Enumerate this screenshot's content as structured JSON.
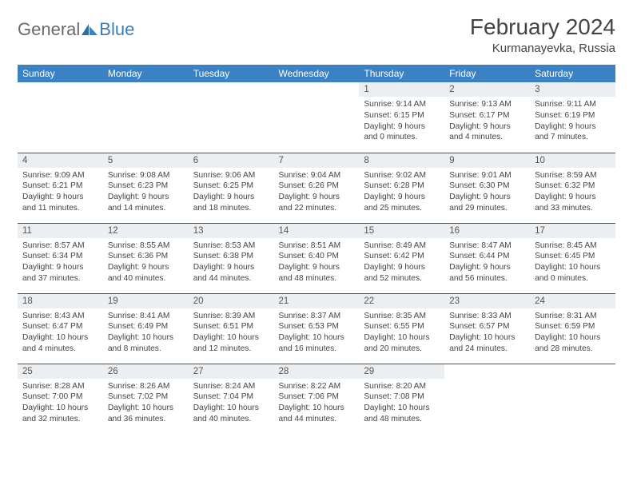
{
  "logo": {
    "gray": "General",
    "blue": "Blue"
  },
  "title": "February 2024",
  "location": "Kurmanayevka, Russia",
  "header_bg": "#3b82c4",
  "daynum_bg": "#eceff1",
  "border_color": "#2b5b8a",
  "weekdays": [
    "Sunday",
    "Monday",
    "Tuesday",
    "Wednesday",
    "Thursday",
    "Friday",
    "Saturday"
  ],
  "weeks": [
    [
      null,
      null,
      null,
      null,
      {
        "n": "1",
        "sr": "9:14 AM",
        "ss": "6:15 PM",
        "dl": "9 hours and 0 minutes."
      },
      {
        "n": "2",
        "sr": "9:13 AM",
        "ss": "6:17 PM",
        "dl": "9 hours and 4 minutes."
      },
      {
        "n": "3",
        "sr": "9:11 AM",
        "ss": "6:19 PM",
        "dl": "9 hours and 7 minutes."
      }
    ],
    [
      {
        "n": "4",
        "sr": "9:09 AM",
        "ss": "6:21 PM",
        "dl": "9 hours and 11 minutes."
      },
      {
        "n": "5",
        "sr": "9:08 AM",
        "ss": "6:23 PM",
        "dl": "9 hours and 14 minutes."
      },
      {
        "n": "6",
        "sr": "9:06 AM",
        "ss": "6:25 PM",
        "dl": "9 hours and 18 minutes."
      },
      {
        "n": "7",
        "sr": "9:04 AM",
        "ss": "6:26 PM",
        "dl": "9 hours and 22 minutes."
      },
      {
        "n": "8",
        "sr": "9:02 AM",
        "ss": "6:28 PM",
        "dl": "9 hours and 25 minutes."
      },
      {
        "n": "9",
        "sr": "9:01 AM",
        "ss": "6:30 PM",
        "dl": "9 hours and 29 minutes."
      },
      {
        "n": "10",
        "sr": "8:59 AM",
        "ss": "6:32 PM",
        "dl": "9 hours and 33 minutes."
      }
    ],
    [
      {
        "n": "11",
        "sr": "8:57 AM",
        "ss": "6:34 PM",
        "dl": "9 hours and 37 minutes."
      },
      {
        "n": "12",
        "sr": "8:55 AM",
        "ss": "6:36 PM",
        "dl": "9 hours and 40 minutes."
      },
      {
        "n": "13",
        "sr": "8:53 AM",
        "ss": "6:38 PM",
        "dl": "9 hours and 44 minutes."
      },
      {
        "n": "14",
        "sr": "8:51 AM",
        "ss": "6:40 PM",
        "dl": "9 hours and 48 minutes."
      },
      {
        "n": "15",
        "sr": "8:49 AM",
        "ss": "6:42 PM",
        "dl": "9 hours and 52 minutes."
      },
      {
        "n": "16",
        "sr": "8:47 AM",
        "ss": "6:44 PM",
        "dl": "9 hours and 56 minutes."
      },
      {
        "n": "17",
        "sr": "8:45 AM",
        "ss": "6:45 PM",
        "dl": "10 hours and 0 minutes."
      }
    ],
    [
      {
        "n": "18",
        "sr": "8:43 AM",
        "ss": "6:47 PM",
        "dl": "10 hours and 4 minutes."
      },
      {
        "n": "19",
        "sr": "8:41 AM",
        "ss": "6:49 PM",
        "dl": "10 hours and 8 minutes."
      },
      {
        "n": "20",
        "sr": "8:39 AM",
        "ss": "6:51 PM",
        "dl": "10 hours and 12 minutes."
      },
      {
        "n": "21",
        "sr": "8:37 AM",
        "ss": "6:53 PM",
        "dl": "10 hours and 16 minutes."
      },
      {
        "n": "22",
        "sr": "8:35 AM",
        "ss": "6:55 PM",
        "dl": "10 hours and 20 minutes."
      },
      {
        "n": "23",
        "sr": "8:33 AM",
        "ss": "6:57 PM",
        "dl": "10 hours and 24 minutes."
      },
      {
        "n": "24",
        "sr": "8:31 AM",
        "ss": "6:59 PM",
        "dl": "10 hours and 28 minutes."
      }
    ],
    [
      {
        "n": "25",
        "sr": "8:28 AM",
        "ss": "7:00 PM",
        "dl": "10 hours and 32 minutes."
      },
      {
        "n": "26",
        "sr": "8:26 AM",
        "ss": "7:02 PM",
        "dl": "10 hours and 36 minutes."
      },
      {
        "n": "27",
        "sr": "8:24 AM",
        "ss": "7:04 PM",
        "dl": "10 hours and 40 minutes."
      },
      {
        "n": "28",
        "sr": "8:22 AM",
        "ss": "7:06 PM",
        "dl": "10 hours and 44 minutes."
      },
      {
        "n": "29",
        "sr": "8:20 AM",
        "ss": "7:08 PM",
        "dl": "10 hours and 48 minutes."
      },
      null,
      null
    ]
  ]
}
